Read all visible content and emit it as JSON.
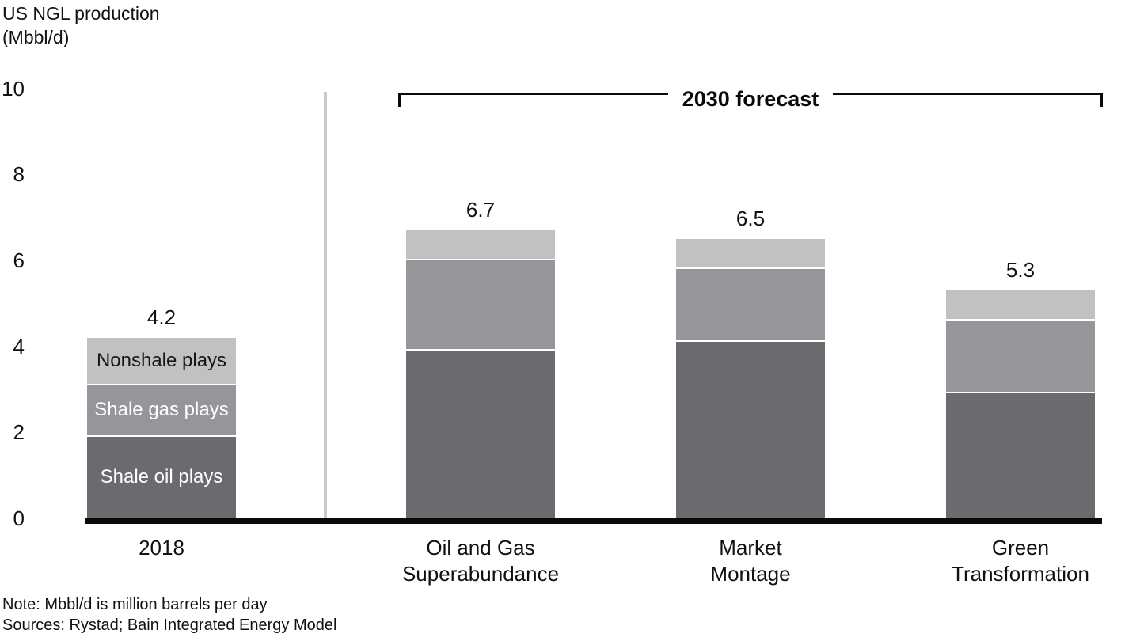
{
  "title": {
    "line1": "US NGL production",
    "line2": "(Mbbl/d)"
  },
  "notes": {
    "note": "Note: Mbbl/d is million barrels per day",
    "sources": "Sources: Rystad; Bain Integrated Energy Model"
  },
  "chart_data": {
    "type": "bar",
    "stacked": true,
    "title": "US NGL production (Mbbl/d)",
    "ylabel": "US NGL production (Mbbl/d)",
    "ylim": [
      0,
      10
    ],
    "yticks": [
      0,
      2,
      4,
      6,
      8,
      10
    ],
    "grid": false,
    "legend_position": "labels-inside-first-bar",
    "forecast_label": "2030 forecast",
    "forecast_categories": [
      "Oil and Gas Superabundance",
      "Market Montage",
      "Green Transformation"
    ],
    "categories": [
      [
        "2018"
      ],
      [
        "Oil and Gas",
        "Superabundance"
      ],
      [
        "Market",
        "Montage"
      ],
      [
        "Green",
        "Transformation"
      ]
    ],
    "series": [
      {
        "name": "Shale oil plays",
        "color": "#6b6b6f",
        "label_color": "#ffffff",
        "values": [
          1.9,
          3.9,
          4.1,
          2.9
        ]
      },
      {
        "name": "Shale gas plays",
        "color": "#95959a",
        "label_color": "#ffffff",
        "values": [
          1.2,
          2.1,
          1.7,
          1.7
        ]
      },
      {
        "name": "Nonshale plays",
        "color": "#c1c1c1",
        "label_color": "#161616",
        "values": [
          1.1,
          0.7,
          0.7,
          0.7
        ]
      }
    ],
    "totals": [
      4.2,
      6.7,
      6.5,
      5.3
    ],
    "segment_labels_bar_index": 0,
    "colors": {
      "axis": "#0a0a0a",
      "divider": "#c9c9c9",
      "separator": "#ffffff"
    }
  }
}
